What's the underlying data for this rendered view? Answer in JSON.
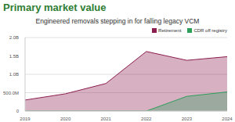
{
  "chart_data": {
    "type": "area",
    "title": "Primary market value",
    "subtitle": "Engineered removals stepping in for falling legacy VCM",
    "categories": [
      "2019",
      "2020",
      "2021",
      "2022",
      "2023",
      "2024"
    ],
    "series": [
      {
        "name": "Retirement",
        "color": "#8c1d4f",
        "values": [
          300000000,
          470000000,
          750000000,
          1620000000,
          1380000000,
          1480000000
        ]
      },
      {
        "name": "CDR off registry",
        "color": "#2e9e5b",
        "values": [
          0,
          0,
          0,
          0,
          400000000,
          520000000
        ]
      }
    ],
    "ylim": [
      0,
      2000000000
    ],
    "yticks": [
      0,
      {
        "value": 500000000,
        "label": "500.0M"
      },
      {
        "value": 1000000000,
        "label": "1.0B"
      },
      {
        "value": 1500000000,
        "label": "1.5B"
      },
      {
        "value": 2000000000,
        "label": "2.0B"
      }
    ],
    "grid": true,
    "legend": "top-right",
    "stacked": false
  }
}
